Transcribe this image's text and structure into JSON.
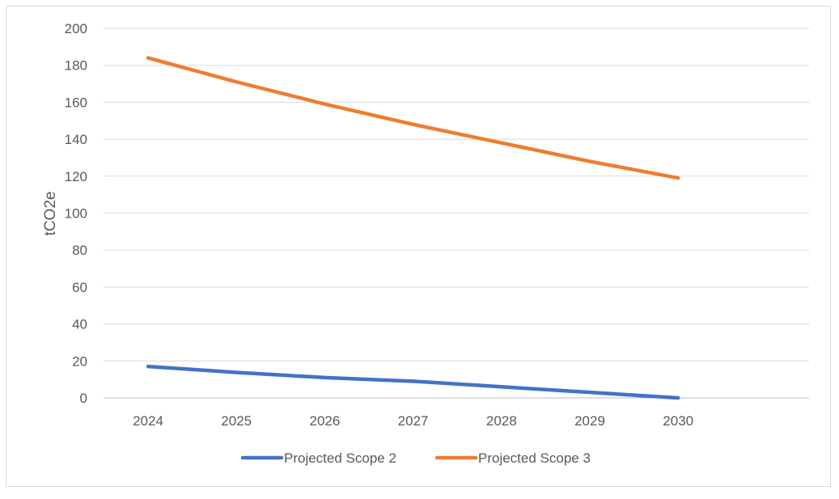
{
  "chart_data": {
    "type": "line",
    "title": "",
    "xlabel": "",
    "ylabel": "tCO2e",
    "categories": [
      "2024",
      "2025",
      "2026",
      "2027",
      "2028",
      "2029",
      "2030"
    ],
    "ylim": [
      0,
      200
    ],
    "yticks": [
      0,
      20,
      40,
      60,
      80,
      100,
      120,
      140,
      160,
      180,
      200
    ],
    "grid": true,
    "legend_position": "bottom",
    "series": [
      {
        "name": "Projected Scope 2",
        "color": "#4472C4",
        "values": [
          17,
          13.8,
          11,
          9,
          6,
          3,
          0
        ]
      },
      {
        "name": "Projected Scope 3",
        "color": "#ED7D31",
        "values": [
          184,
          171,
          159,
          148,
          138,
          128,
          119
        ]
      }
    ]
  }
}
